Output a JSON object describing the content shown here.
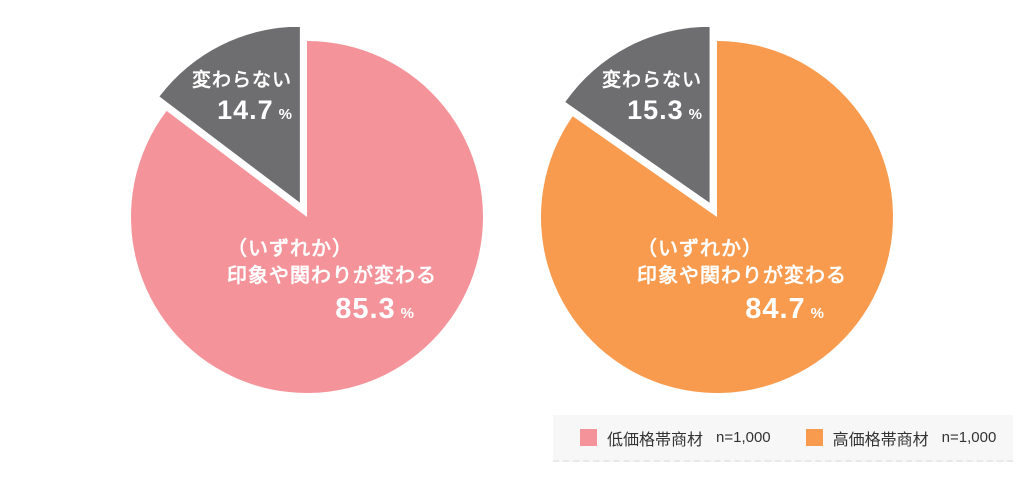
{
  "chart_data": [
    {
      "type": "pie",
      "title": "低価格帯商材",
      "sample_size": "n=1,000",
      "start_angle": "top",
      "direction": "clockwise",
      "slices": [
        {
          "name": "changes",
          "label_lines": [
            "（いずれか）",
            "印象や関わりが変わる"
          ],
          "value": 85.3,
          "value_text": "85.3",
          "unit": "%",
          "color": "#F4949A",
          "exploded": false,
          "label_color": "#FFFFFF"
        },
        {
          "name": "unchanged",
          "label": "変わらない",
          "value": 14.7,
          "value_text": "14.7",
          "unit": "%",
          "color": "#6E6E70",
          "exploded": true,
          "label_color": "#FFFFFF"
        }
      ],
      "legend": {
        "swatch_color": "#F4949A",
        "label": "低価格帯商材",
        "n": "n=1,000"
      }
    },
    {
      "type": "pie",
      "title": "高価格帯商材",
      "sample_size": "n=1,000",
      "start_angle": "top",
      "direction": "clockwise",
      "slices": [
        {
          "name": "changes",
          "label_lines": [
            "（いずれか）",
            "印象や関わりが変わる"
          ],
          "value": 84.7,
          "value_text": "84.7",
          "unit": "%",
          "color": "#F89B4E",
          "exploded": false,
          "label_color": "#FFFFFF"
        },
        {
          "name": "unchanged",
          "label": "変わらない",
          "value": 15.3,
          "value_text": "15.3",
          "unit": "%",
          "color": "#6E6E70",
          "exploded": true,
          "label_color": "#FFFFFF"
        }
      ],
      "legend": {
        "swatch_color": "#F89B4E",
        "label": "高価格帯商材",
        "n": "n=1,000"
      }
    }
  ],
  "layout_hints": {
    "background": "#FFFFFF",
    "legend_background": "#F7F7F7",
    "legend_position": "bottom-right",
    "explode_gap_color": "#FFFFFF"
  }
}
